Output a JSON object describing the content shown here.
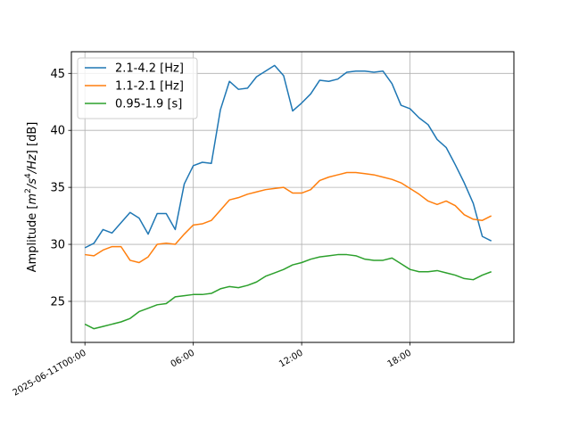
{
  "chart_data": {
    "type": "line",
    "title": "",
    "ylabel_parts": [
      "Amplitude [",
      "m",
      "2",
      "/",
      "s",
      "4",
      "/",
      "Hz",
      "] [dB]"
    ],
    "xlabel": "",
    "x_start": "2025-06-11T00:00",
    "x_unit": "hours",
    "xlim": [
      -0.75,
      23.75
    ],
    "ylim": [
      21.4,
      46.9
    ],
    "xticks": [
      {
        "x": 0,
        "label": "2025-06-11T00:00"
      },
      {
        "x": 6,
        "label": "06:00"
      },
      {
        "x": 12,
        "label": "12:00"
      },
      {
        "x": 18,
        "label": "18:00"
      }
    ],
    "yticks": [
      {
        "y": 25,
        "label": "25"
      },
      {
        "y": 30,
        "label": "30"
      },
      {
        "y": 35,
        "label": "35"
      },
      {
        "y": 40,
        "label": "40"
      },
      {
        "y": 45,
        "label": "45"
      }
    ],
    "grid": true,
    "legend_position": "upper-left",
    "x": [
      0,
      0.5,
      1,
      1.5,
      2,
      2.5,
      3,
      3.5,
      4,
      4.5,
      5,
      5.5,
      6,
      6.5,
      7,
      7.5,
      8,
      8.5,
      9,
      9.5,
      10,
      10.5,
      11,
      11.5,
      12,
      12.5,
      13,
      13.5,
      14,
      14.5,
      15,
      15.5,
      16,
      16.5,
      17,
      17.5,
      18,
      18.5,
      19,
      19.5,
      20,
      20.5,
      21,
      21.5,
      22,
      22.5
    ],
    "series": [
      {
        "name": "2.1-4.2 [Hz]",
        "color": "#1f77b4",
        "values": [
          29.7,
          30.1,
          31.3,
          31.0,
          31.9,
          32.8,
          32.3,
          30.9,
          32.7,
          32.7,
          31.3,
          35.3,
          36.9,
          37.2,
          37.1,
          41.8,
          44.3,
          43.6,
          43.7,
          44.7,
          45.2,
          45.7,
          44.8,
          41.7,
          42.4,
          43.2,
          44.4,
          44.3,
          44.5,
          45.1,
          45.2,
          45.2,
          45.1,
          45.2,
          44.1,
          42.2,
          41.9,
          41.1,
          40.5,
          39.2,
          38.5,
          37.0,
          35.4,
          33.6,
          30.7,
          30.3
        ]
      },
      {
        "name": "1.1-2.1 [Hz]",
        "color": "#ff7f0e",
        "values": [
          29.1,
          29.0,
          29.5,
          29.8,
          29.8,
          28.6,
          28.4,
          28.9,
          30.0,
          30.1,
          30.0,
          30.9,
          31.7,
          31.8,
          32.1,
          33.0,
          33.9,
          34.1,
          34.4,
          34.6,
          34.8,
          34.9,
          35.0,
          34.5,
          34.5,
          34.8,
          35.6,
          35.9,
          36.1,
          36.3,
          36.3,
          36.2,
          36.1,
          35.9,
          35.7,
          35.4,
          34.9,
          34.4,
          33.8,
          33.5,
          33.8,
          33.4,
          32.6,
          32.2,
          32.1,
          32.5
        ]
      },
      {
        "name": "0.95-1.9 [s]",
        "color": "#2ca02c",
        "values": [
          23.0,
          22.6,
          22.8,
          23.0,
          23.2,
          23.5,
          24.1,
          24.4,
          24.7,
          24.8,
          25.4,
          25.5,
          25.6,
          25.6,
          25.7,
          26.1,
          26.3,
          26.2,
          26.4,
          26.7,
          27.2,
          27.5,
          27.8,
          28.2,
          28.4,
          28.7,
          28.9,
          29.0,
          29.1,
          29.1,
          29.0,
          28.7,
          28.6,
          28.6,
          28.8,
          28.3,
          27.8,
          27.6,
          27.6,
          27.7,
          27.5,
          27.3,
          27.0,
          26.9,
          27.3,
          27.6
        ]
      }
    ]
  }
}
